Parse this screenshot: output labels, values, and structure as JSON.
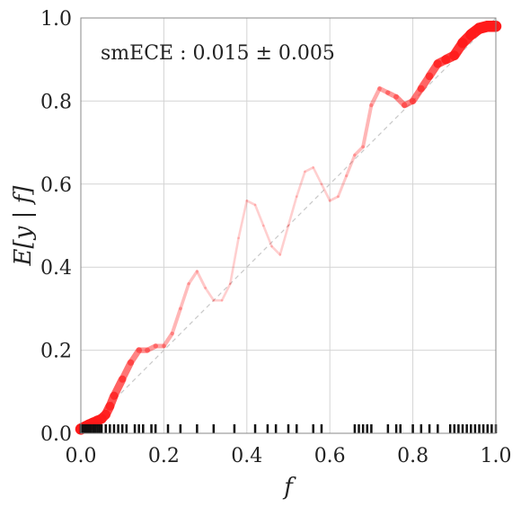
{
  "chart_data": {
    "type": "line",
    "title": "",
    "xlabel": "f",
    "ylabel": "E[y | f]",
    "annotation": "smECE : 0.015 ± 0.005",
    "xlim": [
      0,
      1
    ],
    "ylim": [
      0,
      1
    ],
    "xticks": [
      "0.0",
      "0.2",
      "0.4",
      "0.6",
      "0.8",
      "1.0"
    ],
    "yticks": [
      "0.0",
      "0.2",
      "0.4",
      "0.6",
      "0.8",
      "1.0"
    ],
    "grid": true,
    "reference_line": {
      "style": "dashed",
      "color": "#c8c8c8",
      "from": [
        0,
        0
      ],
      "to": [
        1,
        1
      ]
    },
    "line_color": "#ff1a1a",
    "series": [
      {
        "x": [
          0.0,
          0.01,
          0.02,
          0.03,
          0.04,
          0.05,
          0.06,
          0.07,
          0.08,
          0.1,
          0.12,
          0.14,
          0.16,
          0.18,
          0.2,
          0.22,
          0.24,
          0.26,
          0.28,
          0.3,
          0.32,
          0.34,
          0.36,
          0.38,
          0.4,
          0.42,
          0.44,
          0.46,
          0.48,
          0.5,
          0.52,
          0.54,
          0.56,
          0.58,
          0.6,
          0.62,
          0.64,
          0.66,
          0.68,
          0.7,
          0.72,
          0.74,
          0.76,
          0.78,
          0.8,
          0.82,
          0.84,
          0.86,
          0.88,
          0.9,
          0.92,
          0.94,
          0.96,
          0.98,
          1.0
        ],
        "y": [
          0.01,
          0.015,
          0.02,
          0.025,
          0.03,
          0.035,
          0.045,
          0.065,
          0.09,
          0.13,
          0.17,
          0.2,
          0.2,
          0.21,
          0.21,
          0.24,
          0.3,
          0.36,
          0.39,
          0.35,
          0.32,
          0.32,
          0.36,
          0.47,
          0.56,
          0.55,
          0.5,
          0.45,
          0.43,
          0.5,
          0.57,
          0.63,
          0.64,
          0.6,
          0.56,
          0.57,
          0.62,
          0.67,
          0.69,
          0.79,
          0.83,
          0.82,
          0.81,
          0.79,
          0.8,
          0.83,
          0.86,
          0.89,
          0.9,
          0.91,
          0.94,
          0.96,
          0.975,
          0.98,
          0.98
        ],
        "density": [
          1.0,
          1.0,
          1.0,
          0.95,
          0.9,
          0.85,
          0.8,
          0.75,
          0.7,
          0.6,
          0.5,
          0.45,
          0.4,
          0.35,
          0.3,
          0.25,
          0.2,
          0.18,
          0.15,
          0.12,
          0.1,
          0.1,
          0.1,
          0.1,
          0.1,
          0.1,
          0.1,
          0.1,
          0.1,
          0.1,
          0.1,
          0.1,
          0.1,
          0.1,
          0.12,
          0.12,
          0.15,
          0.18,
          0.2,
          0.25,
          0.3,
          0.35,
          0.4,
          0.45,
          0.5,
          0.6,
          0.65,
          0.7,
          0.8,
          0.85,
          0.9,
          0.95,
          1.0,
          1.0,
          1.0
        ]
      }
    ],
    "rug": [
      0.0,
      0.003,
      0.006,
      0.01,
      0.012,
      0.015,
      0.02,
      0.025,
      0.03,
      0.035,
      0.04,
      0.045,
      0.05,
      0.06,
      0.07,
      0.08,
      0.09,
      0.1,
      0.11,
      0.13,
      0.14,
      0.15,
      0.17,
      0.18,
      0.21,
      0.24,
      0.28,
      0.32,
      0.37,
      0.42,
      0.45,
      0.47,
      0.5,
      0.52,
      0.56,
      0.58,
      0.66,
      0.67,
      0.68,
      0.69,
      0.7,
      0.74,
      0.76,
      0.77,
      0.8,
      0.82,
      0.84,
      0.86,
      0.89,
      0.9,
      0.91,
      0.92,
      0.93,
      0.94,
      0.95,
      0.96,
      0.97,
      0.98,
      0.99,
      1.0
    ]
  }
}
